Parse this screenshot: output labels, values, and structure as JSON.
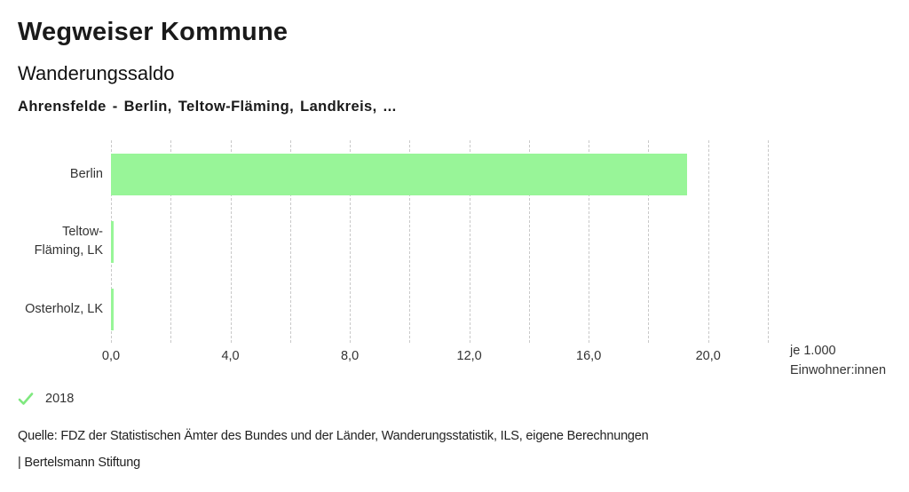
{
  "header": {
    "title": "Wegweiser Kommune",
    "subtitle": "Wanderungssaldo",
    "context": "Ahrensfelde - Berlin, Teltow-Fläming, Landkreis, ..."
  },
  "chart_data": {
    "type": "bar",
    "orientation": "horizontal",
    "title": "Wanderungssaldo",
    "subtitle_context": "Ahrensfelde - Berlin, Teltow-Fläming, Landkreis, ...",
    "categories": [
      "Berlin",
      "Teltow-Fläming, LK",
      "Osterholz, LK"
    ],
    "series": [
      {
        "name": "2018",
        "values": [
          19.3,
          0.1,
          0.1
        ]
      }
    ],
    "xlabel": "je 1.000 Einwohner:innen",
    "xlabel_lines": [
      "je 1.000",
      "Einwohner:innen"
    ],
    "xlim": [
      0,
      22
    ],
    "grid": true,
    "grid_step": 2,
    "ticks": [
      {
        "value": 0,
        "label": "0,0"
      },
      {
        "value": 4,
        "label": "4,0"
      },
      {
        "value": 8,
        "label": "8,0"
      },
      {
        "value": 12,
        "label": "12,0"
      },
      {
        "value": 16,
        "label": "16,0"
      },
      {
        "value": 20,
        "label": "20,0"
      }
    ],
    "legend": {
      "position": "bottom-left",
      "marker": "check",
      "label": "2018"
    }
  },
  "legend": {
    "year_label": "2018"
  },
  "footer": {
    "source": "Quelle: FDZ der Statistischen Ämter des Bundes und der Länder, Wanderungsstatistik, ILS, eigene Berechnungen",
    "attribution": "| Bertelsmann Stiftung"
  },
  "colors": {
    "bar_fill": "#98f598",
    "check_green": "#7fe87f",
    "gridline": "#c9c9c9"
  }
}
